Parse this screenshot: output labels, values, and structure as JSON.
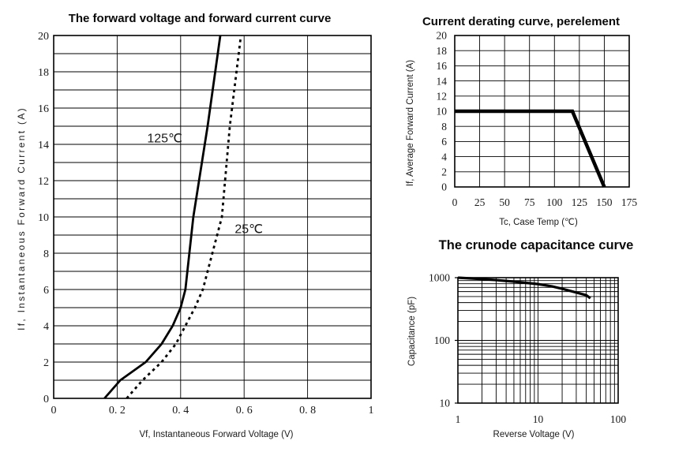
{
  "page": {
    "background": "#ffffff",
    "ink_color": "#000000"
  },
  "chart_data": [
    {
      "id": "forward-voltage-current",
      "type": "line",
      "title": "The forward voltage and forward current curve",
      "xlabel": "Vf, Instantaneous Forward Voltage (V)",
      "ylabel": "If, Instantaneous Forward Current (A)",
      "xscale": "linear",
      "yscale": "linear",
      "xlim": [
        0,
        1
      ],
      "ylim": [
        0,
        20
      ],
      "xticks": [
        0,
        0.2,
        0.4,
        0.6,
        0.8,
        1
      ],
      "xtick_labels": [
        "0",
        "0. 2",
        "0. 4",
        "0. 6",
        "0. 8",
        "1"
      ],
      "yticks": [
        0,
        2,
        4,
        6,
        8,
        10,
        12,
        14,
        16,
        18,
        20
      ],
      "ytick_labels": [
        "0",
        "2",
        "4",
        "6",
        "8",
        "10",
        "12",
        "14",
        "16",
        "18",
        "20"
      ],
      "xgrid_step": 0.2,
      "ygrid_step": 1,
      "grid": "on",
      "legend": "none",
      "series": [
        {
          "name": "125℃",
          "line": "solid",
          "width": 2.8,
          "points": [
            [
              0.16,
              0
            ],
            [
              0.21,
              1
            ],
            [
              0.29,
              2
            ],
            [
              0.34,
              3
            ],
            [
              0.375,
              4
            ],
            [
              0.4,
              5
            ],
            [
              0.415,
              6
            ],
            [
              0.44,
              10
            ],
            [
              0.485,
              15
            ],
            [
              0.525,
              20
            ]
          ]
        },
        {
          "name": "25℃",
          "line": "dashed",
          "width": 2.8,
          "points": [
            [
              0.23,
              0
            ],
            [
              0.28,
              1
            ],
            [
              0.34,
              2
            ],
            [
              0.385,
              3
            ],
            [
              0.415,
              4
            ],
            [
              0.445,
              5
            ],
            [
              0.47,
              6
            ],
            [
              0.53,
              10
            ],
            [
              0.555,
              15
            ],
            [
              0.59,
              20
            ]
          ]
        }
      ],
      "annotations": [
        {
          "text": "125℃",
          "x": 0.35,
          "y": 14.35
        },
        {
          "text": "25℃",
          "x": 0.615,
          "y": 9.35
        }
      ]
    },
    {
      "id": "current-derating",
      "type": "line",
      "title": "Current derating curve, perelement",
      "xlabel": "Tc, Case Temp (℃)",
      "ylabel": "If, Average Forward Current (A)",
      "xscale": "linear",
      "yscale": "linear",
      "xlim": [
        0,
        175
      ],
      "ylim": [
        0,
        20
      ],
      "xticks": [
        0,
        25,
        50,
        75,
        100,
        125,
        150,
        175
      ],
      "xtick_labels": [
        "0",
        "25",
        "50",
        "75",
        "100",
        "125",
        "150",
        "175"
      ],
      "yticks": [
        0,
        2,
        4,
        6,
        8,
        10,
        12,
        14,
        16,
        18,
        20
      ],
      "ytick_labels": [
        "0",
        "2",
        "4",
        "6",
        "8",
        "10",
        "12",
        "14",
        "16",
        "18",
        "20"
      ],
      "xgrid_step": 25,
      "ygrid_step": 2,
      "grid": "on",
      "legend": "none",
      "series": [
        {
          "name": "derating",
          "line": "solid",
          "width": 4.5,
          "points": [
            [
              0,
              10
            ],
            [
              118,
              10
            ],
            [
              150,
              0
            ]
          ]
        }
      ],
      "annotations": []
    },
    {
      "id": "crunode-capacitance",
      "type": "line",
      "title": "The crunode capacitance curve",
      "xlabel": "Reverse Voltage (V)",
      "ylabel": "Capacitance (pF)",
      "xscale": "log",
      "yscale": "log",
      "xlim": [
        1,
        100
      ],
      "ylim": [
        10,
        1000
      ],
      "xticks": [
        1,
        10,
        100
      ],
      "xtick_labels": [
        "1",
        "10",
        "100"
      ],
      "yticks": [
        10,
        100,
        1000
      ],
      "ytick_labels": [
        "10",
        "100",
        "1000"
      ],
      "grid": "on-log-minors",
      "legend": "none",
      "series": [
        {
          "name": "capacitance",
          "line": "solid",
          "width": 3.2,
          "points": [
            [
              1,
              1000
            ],
            [
              2,
              950
            ],
            [
              3,
              915
            ],
            [
              5,
              865
            ],
            [
              10,
              790
            ],
            [
              15,
              725
            ],
            [
              20,
              665
            ],
            [
              30,
              580
            ],
            [
              40,
              525
            ],
            [
              45,
              470
            ]
          ]
        }
      ],
      "annotations": []
    }
  ]
}
